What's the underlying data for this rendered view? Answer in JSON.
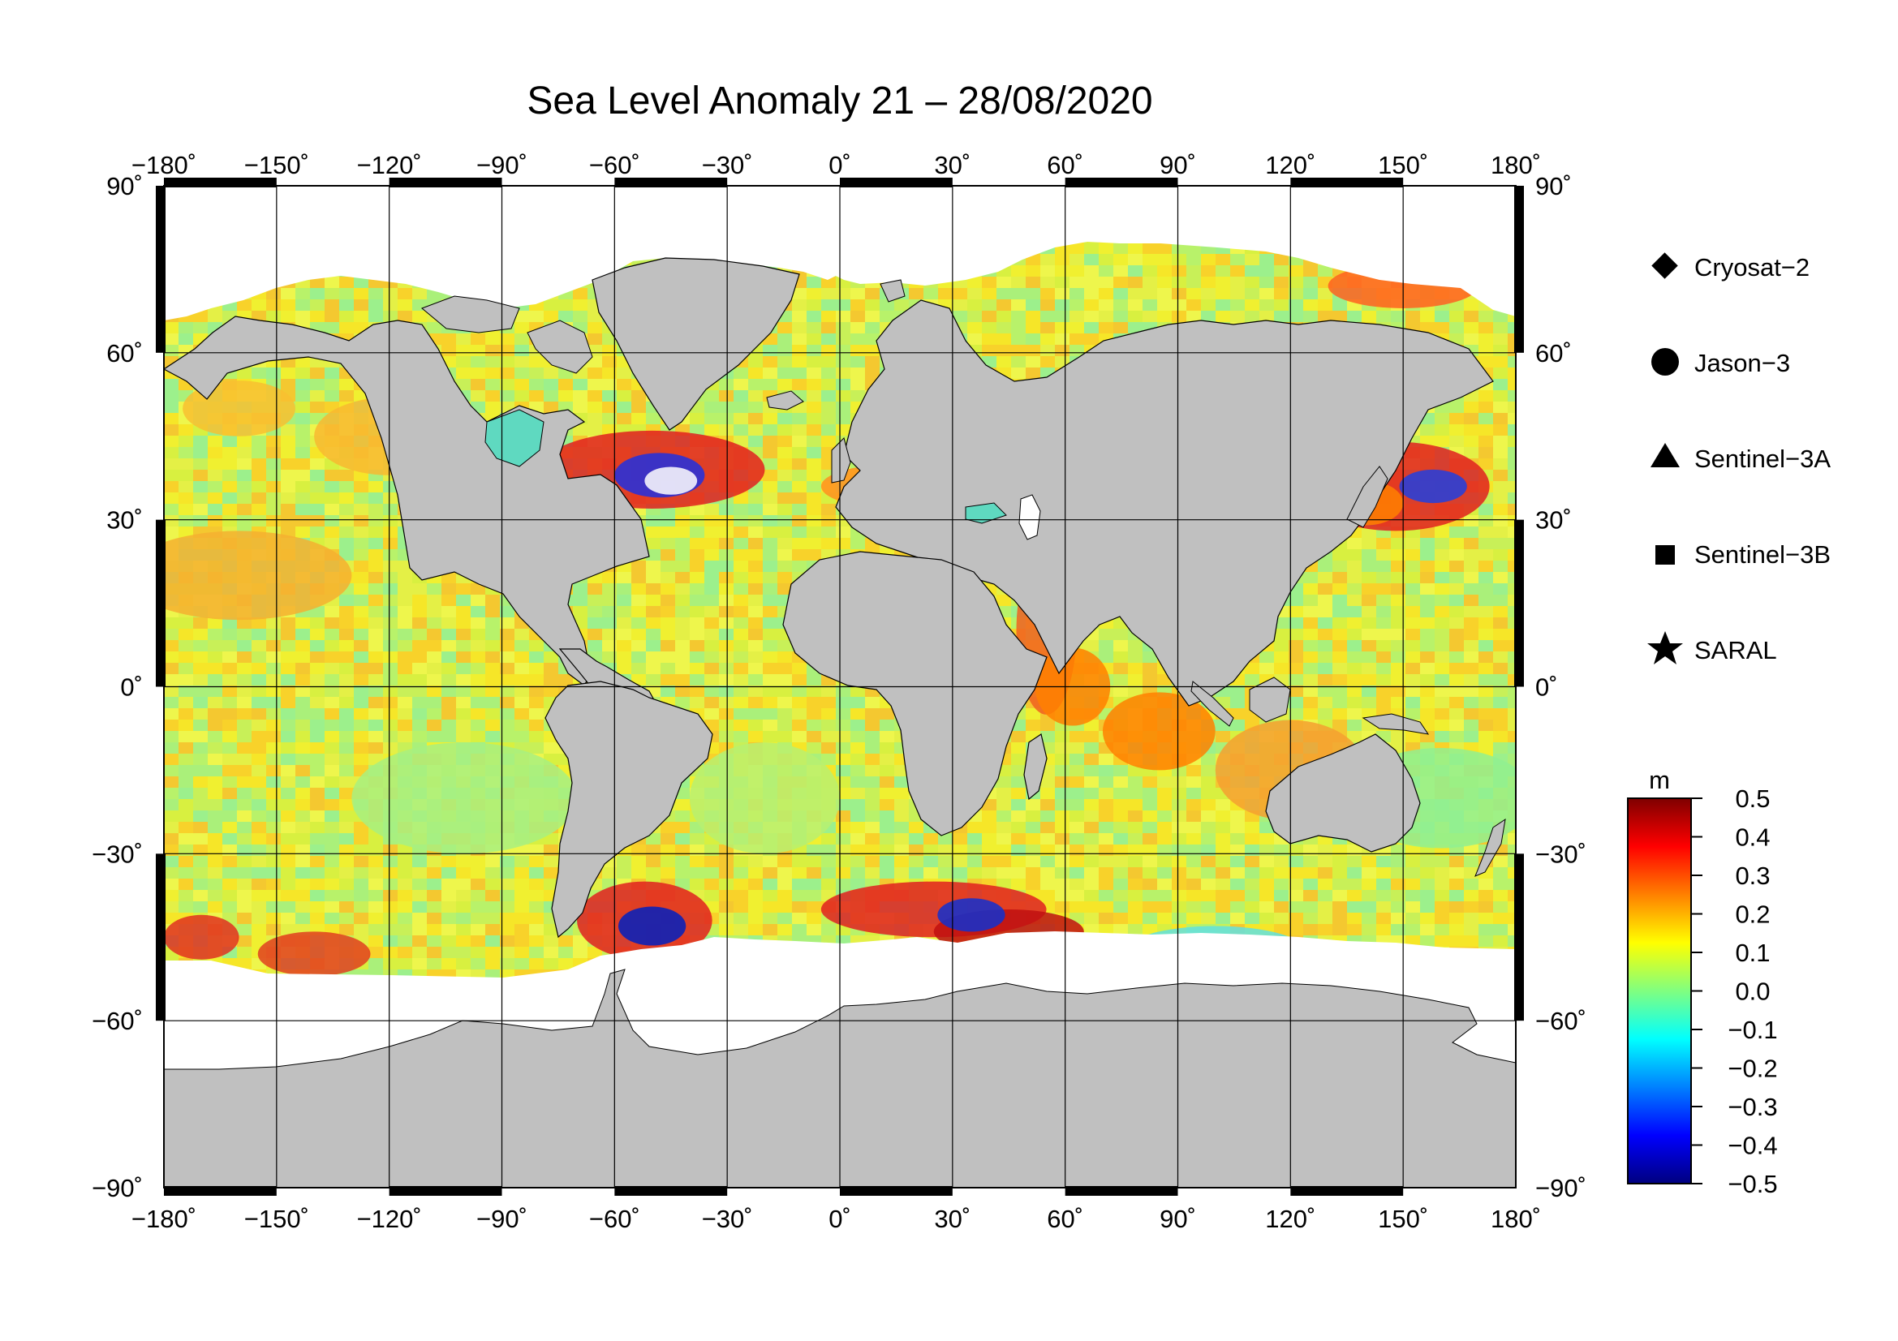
{
  "title": "Sea Level Anomaly 21 – 28/08/2020",
  "axes": {
    "lon_ticks": [
      "−180˚",
      "−150˚",
      "−120˚",
      "−90˚",
      "−60˚",
      "−30˚",
      "0˚",
      "30˚",
      "60˚",
      "90˚",
      "120˚",
      "150˚",
      "180˚"
    ],
    "lat_ticks": [
      "90˚",
      "60˚",
      "30˚",
      "0˚",
      "−30˚",
      "−60˚",
      "−90˚"
    ],
    "lon_range": [
      -180,
      180
    ],
    "lat_range": [
      -90,
      90
    ],
    "grid": true,
    "grid_step_deg": 30
  },
  "legend": {
    "placement": "right",
    "items": [
      {
        "label": "Cryosat−2",
        "symbol": "diamond-icon"
      },
      {
        "label": "Jason−3",
        "symbol": "circle-icon"
      },
      {
        "label": "Sentinel−3A",
        "symbol": "triangle-icon"
      },
      {
        "label": "Sentinel−3B",
        "symbol": "square-icon"
      },
      {
        "label": "SARAL",
        "symbol": "star-icon"
      }
    ]
  },
  "colorbar": {
    "unit": "m",
    "min": -0.5,
    "max": 0.5,
    "tick_labels": [
      "0.5",
      "0.4",
      "0.3",
      "0.2",
      "0.1",
      "0.0",
      "−0.1",
      "−0.2",
      "−0.3",
      "−0.4",
      "−0.5"
    ],
    "colors": [
      "#00007f",
      "#0000ff",
      "#0080ff",
      "#00ffff",
      "#80ff80",
      "#ffff00",
      "#ff8000",
      "#ff0000",
      "#7f0000"
    ]
  },
  "colors": {
    "land": "#c0c0c0",
    "ice_no_data": "#ffffff",
    "ocean_base": "#e6f03c",
    "grid": "#000000"
  }
}
